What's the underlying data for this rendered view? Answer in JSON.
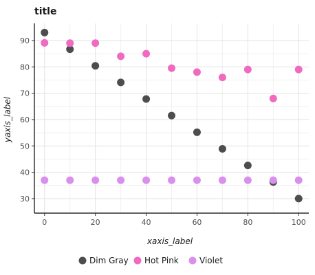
{
  "chart_data": {
    "type": "scatter",
    "title": "title",
    "xlabel": "xaxis_label",
    "ylabel": "yaxis_label",
    "xlim": [
      -4,
      104
    ],
    "ylim": [
      24.5,
      96.5
    ],
    "x_ticks": [
      0,
      20,
      40,
      60,
      80,
      100
    ],
    "x_tick_labels": [
      "0",
      "20",
      "40",
      "60",
      "80",
      "100"
    ],
    "y_ticks": [
      30,
      40,
      50,
      60,
      70,
      80,
      90
    ],
    "y_tick_labels": [
      "30",
      "40",
      "50",
      "60",
      "70",
      "80",
      "90"
    ],
    "grid": true,
    "legend_position": "bottom",
    "x": [
      0,
      10,
      20,
      30,
      40,
      50,
      60,
      70,
      80,
      90,
      100
    ],
    "series": [
      {
        "name": "Dim Gray",
        "color": "#4d4d4d",
        "values": [
          93.0,
          86.7,
          80.4,
          74.1,
          67.8,
          61.5,
          55.2,
          48.9,
          42.6,
          36.3,
          30.0
        ]
      },
      {
        "name": "Hot Pink",
        "color": "#f06bbf",
        "values": [
          89.1,
          89.0,
          89.0,
          84.0,
          85.0,
          79.5,
          78.0,
          76.0,
          79.0,
          68.0,
          79.0
        ]
      },
      {
        "name": "Violet",
        "color": "#d98fee",
        "values": [
          37.0,
          37.0,
          37.0,
          37.0,
          37.0,
          37.0,
          37.0,
          37.0,
          37.0,
          37.0,
          37.0
        ]
      }
    ]
  }
}
